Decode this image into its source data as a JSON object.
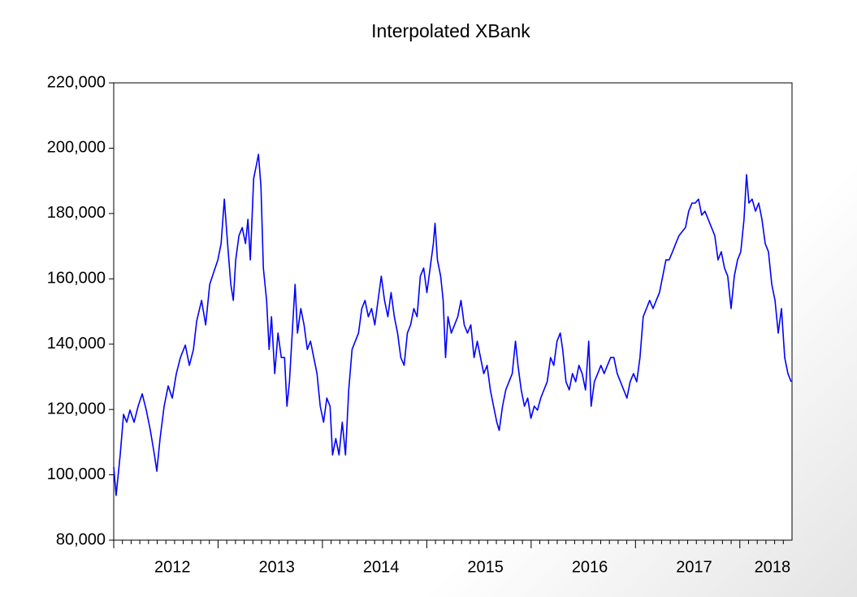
{
  "chart_data": {
    "type": "line",
    "title": "Interpolated XBank",
    "color": "#0000ff",
    "xlim": [
      2012,
      2018.5
    ],
    "xticks": [
      {
        "value": 2012,
        "label": "2012"
      },
      {
        "value": 2013,
        "label": "2013"
      },
      {
        "value": 2014,
        "label": "2014"
      },
      {
        "value": 2015,
        "label": "2015"
      },
      {
        "value": 2016,
        "label": "2016"
      },
      {
        "value": 2017,
        "label": "2017"
      },
      {
        "value": 2018,
        "label": "2018"
      }
    ],
    "ylim": [
      80000,
      220000
    ],
    "yticks": [
      {
        "value": 80000,
        "label": "80,000"
      },
      {
        "value": 100000,
        "label": "100,000"
      },
      {
        "value": 120000,
        "label": "120,000"
      },
      {
        "value": 140000,
        "label": "140,000"
      },
      {
        "value": 160000,
        "label": "160,000"
      },
      {
        "value": 180000,
        "label": "180,000"
      },
      {
        "value": 200000,
        "label": "200,000"
      },
      {
        "value": 220000,
        "label": "220,000"
      }
    ],
    "x": [
      2012.0,
      2012.023,
      2012.062,
      2012.094,
      2012.125,
      2012.156,
      2012.195,
      2012.234,
      2012.273,
      2012.312,
      2012.351,
      2012.39,
      2012.413,
      2012.444,
      2012.483,
      2012.522,
      2012.561,
      2012.6,
      2012.639,
      2012.686,
      2012.725,
      2012.764,
      2012.795,
      2012.842,
      2012.881,
      2012.92,
      2012.959,
      2012.998,
      2013.029,
      2013.06,
      2013.091,
      2013.122,
      2013.146,
      2013.169,
      2013.2,
      2013.231,
      2013.263,
      2013.286,
      2013.309,
      2013.341,
      2013.372,
      2013.387,
      2013.411,
      2013.434,
      2013.465,
      2013.489,
      2013.512,
      2013.543,
      2013.574,
      2013.606,
      2013.637,
      2013.66,
      2013.684,
      2013.715,
      2013.738,
      2013.761,
      2013.793,
      2013.824,
      2013.855,
      2013.886,
      2013.917,
      2013.948,
      2013.979,
      2014.011,
      2014.042,
      2014.073,
      2014.097,
      2014.128,
      2014.159,
      2014.19,
      2014.221,
      2014.252,
      2014.284,
      2014.315,
      2014.346,
      2014.377,
      2014.408,
      2014.44,
      2014.471,
      2014.502,
      2014.533,
      2014.564,
      2014.595,
      2014.627,
      2014.658,
      2014.689,
      2014.72,
      2014.751,
      2014.783,
      2014.814,
      2014.845,
      2014.876,
      2014.907,
      2014.938,
      2014.97,
      2015.001,
      2015.032,
      2015.063,
      2015.079,
      2015.102,
      2015.133,
      2015.157,
      2015.18,
      2015.203,
      2015.235,
      2015.266,
      2015.297,
      2015.328,
      2015.359,
      2015.39,
      2015.422,
      2015.453,
      2015.484,
      2015.515,
      2015.546,
      2015.578,
      2015.609,
      2015.64,
      2015.671,
      2015.694,
      2015.726,
      2015.757,
      2015.788,
      2015.819,
      2015.85,
      2015.874,
      2015.905,
      2015.936,
      2015.967,
      2015.998,
      2016.03,
      2016.061,
      2016.092,
      2016.123,
      2016.154,
      2016.186,
      2016.217,
      2016.248,
      2016.279,
      2016.302,
      2016.334,
      2016.365,
      2016.396,
      2016.427,
      2016.458,
      2016.489,
      2016.521,
      2016.552,
      2016.575,
      2016.606,
      2016.638,
      2016.669,
      2016.7,
      2016.731,
      2016.762,
      2016.793,
      2016.825,
      2016.856,
      2016.887,
      2016.918,
      2016.949,
      2016.981,
      2017.012,
      2017.043,
      2017.074,
      2017.105,
      2017.136,
      2017.168,
      2017.199,
      2017.23,
      2017.261,
      2017.292,
      2017.323,
      2017.355,
      2017.386,
      2017.417,
      2017.448,
      2017.479,
      2017.51,
      2017.542,
      2017.573,
      2017.604,
      2017.635,
      2017.666,
      2017.697,
      2017.729,
      2017.76,
      2017.791,
      2017.822,
      2017.853,
      2017.884,
      2017.916,
      2017.947,
      2017.978,
      2018.009,
      2018.04,
      2018.064,
      2018.087,
      2018.118,
      2018.15,
      2018.181,
      2018.212,
      2018.243,
      2018.274,
      2018.306,
      2018.337,
      2018.368,
      2018.399,
      2018.43,
      2018.461,
      2018.492
    ],
    "values": [
      102400,
      93700,
      106100,
      118500,
      116100,
      119800,
      116100,
      121000,
      124800,
      119800,
      113600,
      106100,
      101100,
      111100,
      121000,
      127200,
      123500,
      131000,
      135900,
      139700,
      133500,
      138400,
      147100,
      153400,
      145900,
      158300,
      162100,
      165800,
      170800,
      184400,
      170800,
      158300,
      153400,
      165800,
      173200,
      175700,
      170800,
      178200,
      165800,
      190700,
      195600,
      198100,
      188200,
      163300,
      153400,
      138400,
      148400,
      131000,
      143400,
      135900,
      135900,
      121000,
      128500,
      145900,
      158300,
      143400,
      150900,
      145900,
      138400,
      140900,
      135900,
      131000,
      121000,
      116100,
      123500,
      121000,
      106100,
      111100,
      106100,
      116100,
      106100,
      126000,
      138400,
      140900,
      143400,
      150900,
      153400,
      148400,
      150900,
      145900,
      153400,
      160800,
      153400,
      148400,
      155800,
      148400,
      143400,
      135900,
      133500,
      143400,
      145900,
      150900,
      148400,
      160800,
      163300,
      155800,
      163300,
      170800,
      177000,
      165800,
      160800,
      153400,
      135900,
      148400,
      143400,
      145900,
      148400,
      153400,
      145900,
      143400,
      145900,
      135900,
      140900,
      135900,
      131000,
      133500,
      126000,
      121000,
      116100,
      113600,
      121000,
      126000,
      128500,
      131000,
      140900,
      133500,
      126000,
      121000,
      123500,
      117300,
      121000,
      119800,
      123500,
      126000,
      128500,
      135900,
      133500,
      140900,
      143400,
      138400,
      128500,
      126000,
      131000,
      128500,
      133500,
      131000,
      126000,
      140900,
      121000,
      128500,
      131000,
      133500,
      131000,
      133500,
      135900,
      135900,
      131000,
      128500,
      126000,
      123500,
      128500,
      131000,
      128500,
      135900,
      148400,
      150900,
      153400,
      150900,
      153400,
      155800,
      160800,
      165800,
      165800,
      168300,
      170800,
      173200,
      174500,
      175700,
      180700,
      183200,
      183200,
      184400,
      179500,
      180700,
      178200,
      175700,
      173200,
      165800,
      168300,
      163300,
      160800,
      150900,
      160800,
      165800,
      168300,
      178200,
      191900,
      183200,
      184400,
      180700,
      183200,
      178200,
      170800,
      168300,
      158300,
      153400,
      143400,
      150900,
      135900,
      131000,
      128500
    ]
  }
}
